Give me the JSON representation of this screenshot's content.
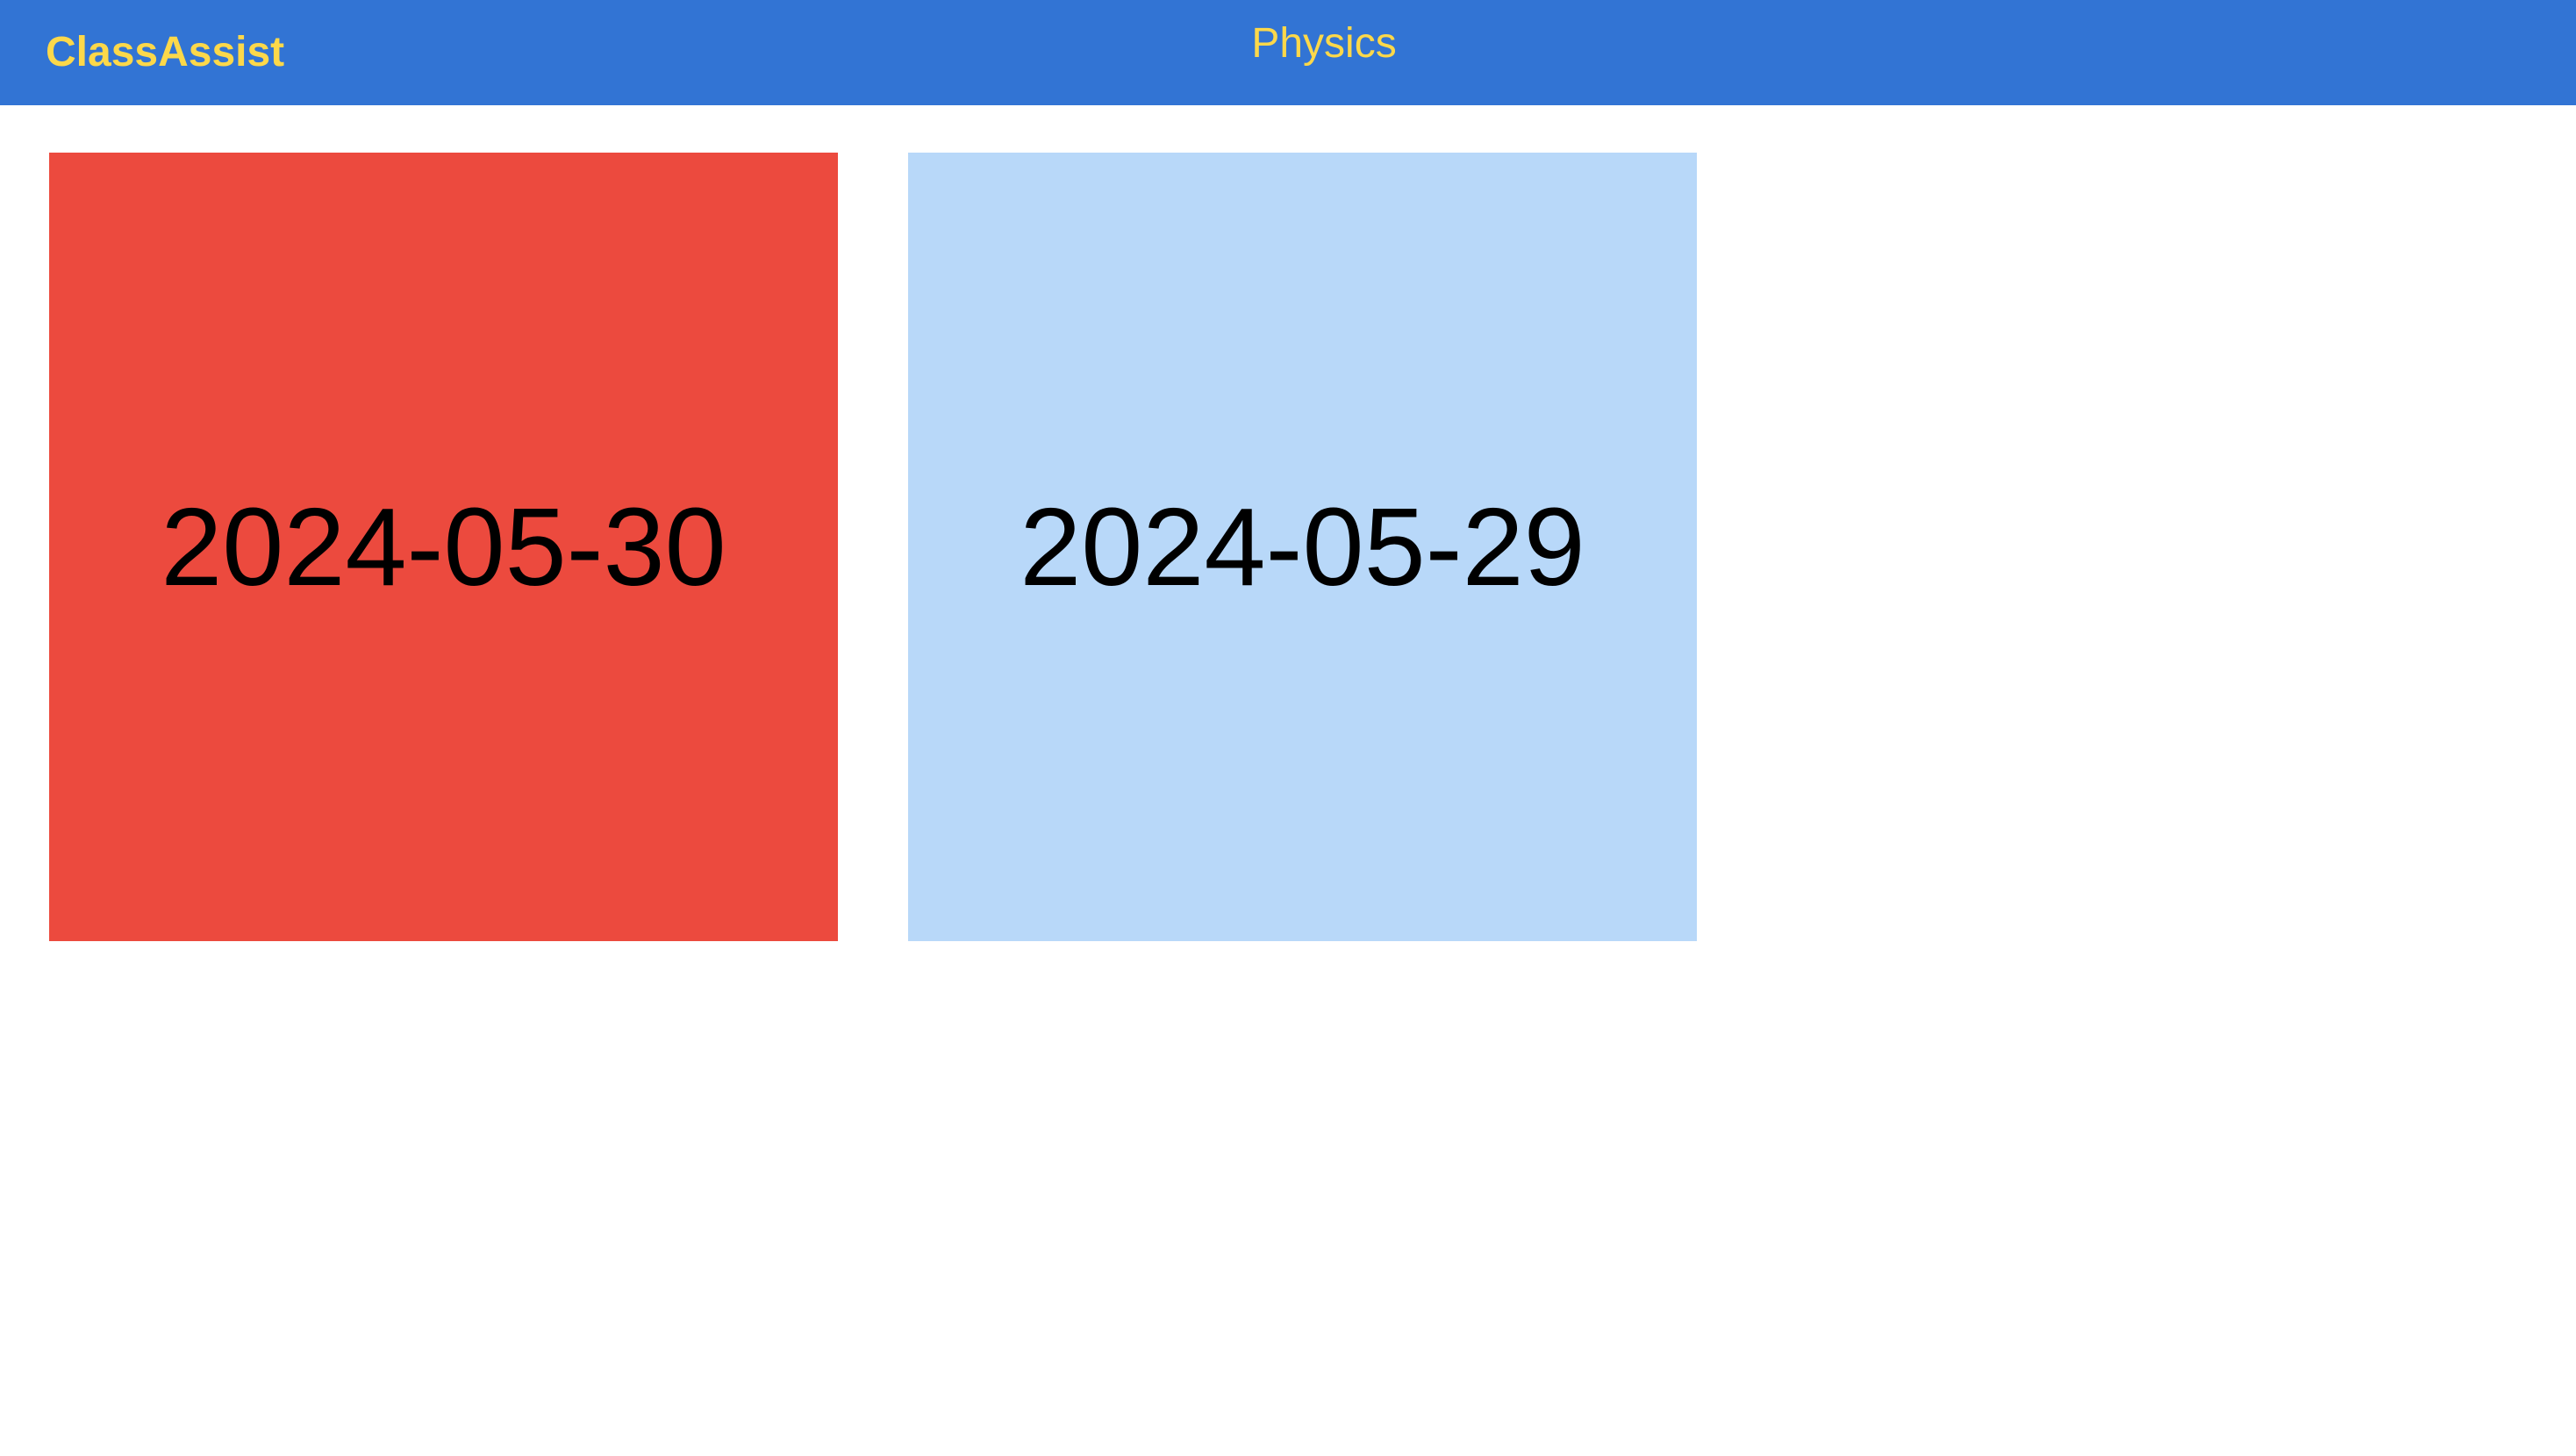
{
  "header": {
    "brand": "ClassAssist",
    "subject": "Physics"
  },
  "cards": [
    {
      "date": "2024-05-30",
      "color": "#ec4a3e"
    },
    {
      "date": "2024-05-29",
      "color": "#b8d8f9"
    }
  ],
  "colors": {
    "header_bg": "#3274d4",
    "header_text": "#fcd84a"
  }
}
